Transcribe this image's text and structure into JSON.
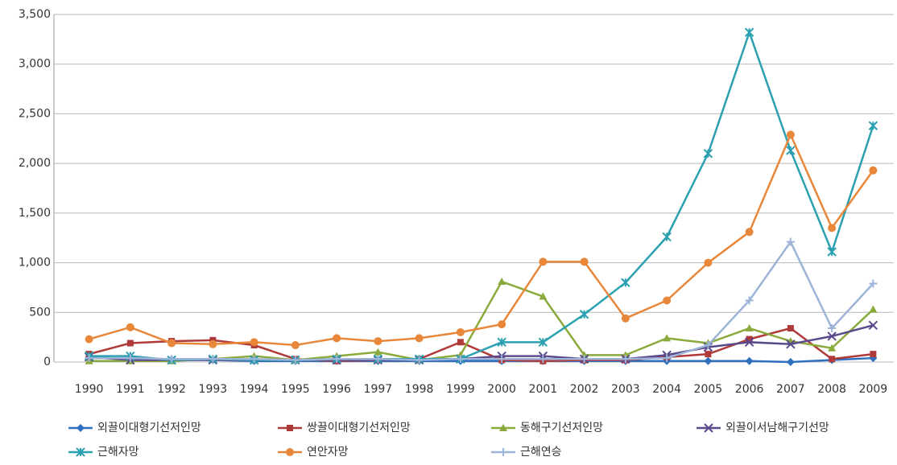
{
  "chart_data": {
    "type": "line",
    "categories": [
      "1990",
      "1991",
      "1992",
      "1993",
      "1994",
      "1995",
      "1996",
      "1997",
      "1998",
      "1999",
      "2000",
      "2001",
      "2002",
      "2003",
      "2004",
      "2005",
      "2006",
      "2007",
      "2008",
      "2009"
    ],
    "series": [
      {
        "name": "외끌이대형기선저인망",
        "color": "#2e6fc0",
        "marker": "diamond",
        "values": [
          50,
          30,
          20,
          20,
          10,
          10,
          10,
          10,
          10,
          10,
          10,
          10,
          10,
          10,
          10,
          10,
          10,
          0,
          20,
          40
        ]
      },
      {
        "name": "쌍끌이대형기선저인망",
        "color": "#b03a3a",
        "marker": "square",
        "values": [
          80,
          190,
          210,
          220,
          170,
          30,
          10,
          20,
          30,
          200,
          20,
          10,
          20,
          20,
          50,
          80,
          230,
          340,
          30,
          80
        ]
      },
      {
        "name": "동해구기선저인망",
        "color": "#8aaa3c",
        "marker": "triangle",
        "values": [
          10,
          10,
          10,
          30,
          60,
          20,
          60,
          100,
          20,
          70,
          810,
          660,
          70,
          70,
          240,
          190,
          340,
          210,
          140,
          530
        ]
      },
      {
        "name": "외끌이서남해구기선망",
        "color": "#5a4a8c",
        "marker": "x",
        "values": [
          50,
          20,
          20,
          20,
          20,
          20,
          20,
          20,
          20,
          30,
          60,
          60,
          30,
          30,
          70,
          150,
          200,
          180,
          260,
          370
        ]
      },
      {
        "name": "근해자망",
        "color": "#2aa0b0",
        "marker": "star",
        "values": [
          60,
          60,
          20,
          30,
          20,
          20,
          30,
          30,
          30,
          30,
          200,
          200,
          480,
          800,
          1260,
          2100,
          3320,
          2130,
          1110,
          2380
        ]
      },
      {
        "name": "연안자망",
        "color": "#e8873a",
        "marker": "circle",
        "values": [
          230,
          350,
          190,
          180,
          200,
          170,
          240,
          210,
          240,
          300,
          380,
          1010,
          1010,
          440,
          620,
          1000,
          1310,
          2290,
          1350,
          1930
        ]
      },
      {
        "name": "근해연승",
        "color": "#9db4d8",
        "marker": "plus",
        "values": [
          40,
          40,
          30,
          30,
          30,
          20,
          30,
          30,
          20,
          30,
          30,
          30,
          30,
          30,
          40,
          170,
          620,
          1210,
          340,
          790
        ]
      }
    ],
    "ylim": [
      0,
      3500
    ],
    "yticks": [
      0,
      500,
      {
        "value": 1000,
        "label": "1,000"
      },
      {
        "value": 1500,
        "label": "1,500"
      },
      {
        "value": 2000,
        "label": "2,000"
      },
      {
        "value": 2500,
        "label": "2,500"
      },
      {
        "value": 3000,
        "label": "3,000"
      },
      {
        "value": 3500,
        "label": "3,500"
      }
    ],
    "grid": true
  }
}
